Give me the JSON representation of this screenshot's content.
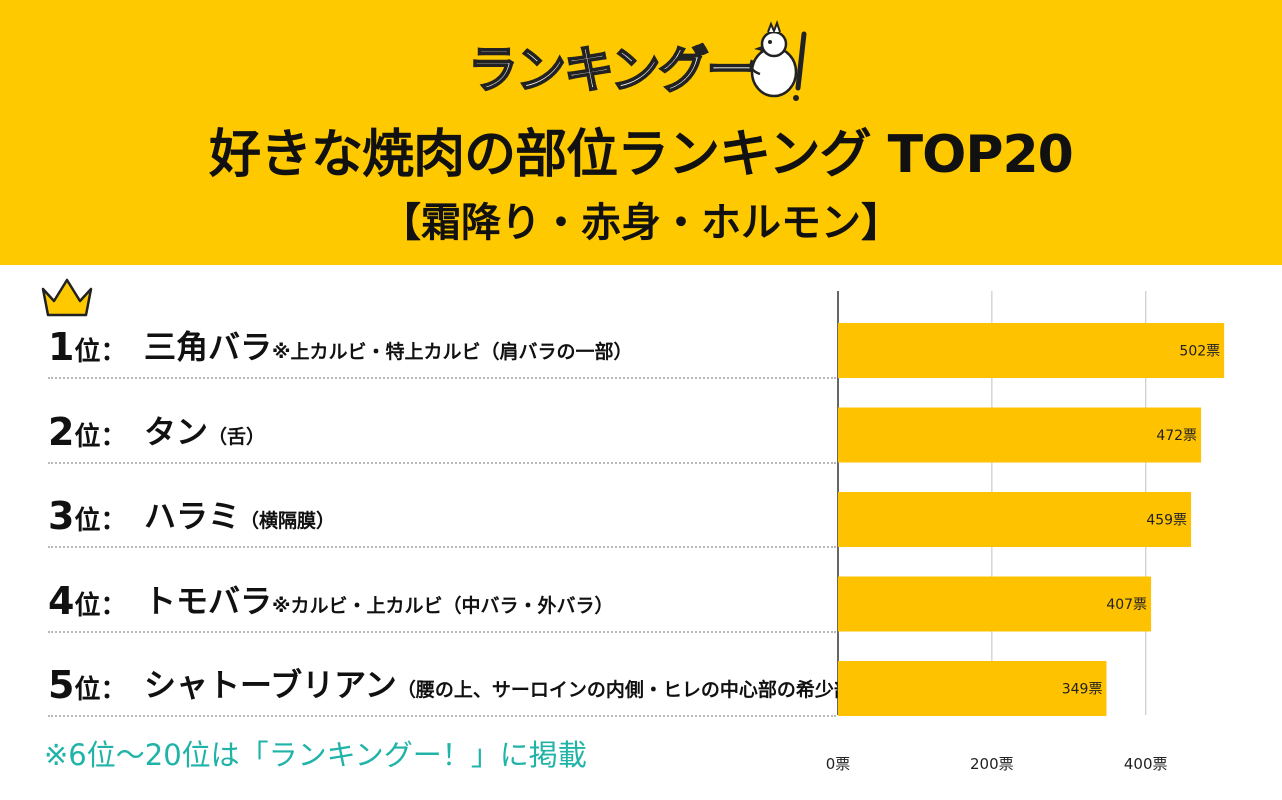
{
  "header": {
    "logo_text": "ランキングー",
    "logo_exclaim": "!",
    "title": "好きな焼肉の部位ランキング TOP20",
    "subtitle": "【霜降り・赤身・ホルモン】"
  },
  "ranking": [
    {
      "rank": "1",
      "suffix": "位：",
      "name": "三角バラ",
      "note": "※上カルビ・特上カルビ",
      "detail": "（肩バラの一部）"
    },
    {
      "rank": "2",
      "suffix": "位：",
      "name": "タン",
      "note": "",
      "detail": "（舌）"
    },
    {
      "rank": "3",
      "suffix": "位：",
      "name": "ハラミ",
      "note": "",
      "detail": "（横隔膜）"
    },
    {
      "rank": "4",
      "suffix": "位：",
      "name": "トモバラ",
      "note": "※カルビ・上カルビ",
      "detail": "（中バラ・外バラ）"
    },
    {
      "rank": "5",
      "suffix": "位：",
      "name": "シャトーブリアン",
      "note": "",
      "detail": "（腰の上、サーロインの内側・ヒレの中心部の希少部位）"
    }
  ],
  "footnote": "※6位〜20位は「ランキングー！」に掲載",
  "colors": {
    "accent": "#FFC900",
    "bar": "#FFC200",
    "footnote": "#20b3a8",
    "grid": "#cccccc",
    "axis": "#333333"
  },
  "chart_data": {
    "type": "bar",
    "orientation": "horizontal",
    "categories": [
      "三角バラ",
      "タン",
      "ハラミ",
      "トモバラ",
      "シャトーブリアン"
    ],
    "values": [
      502,
      472,
      459,
      407,
      349
    ],
    "value_labels": [
      "502票",
      "472票",
      "459票",
      "407票",
      "349票"
    ],
    "xlim": [
      0,
      520
    ],
    "xticks": [
      0,
      200,
      400
    ],
    "xtick_labels": [
      "0票",
      "200票",
      "400票"
    ],
    "title": "",
    "xlabel": "",
    "ylabel": "",
    "grid": true
  }
}
